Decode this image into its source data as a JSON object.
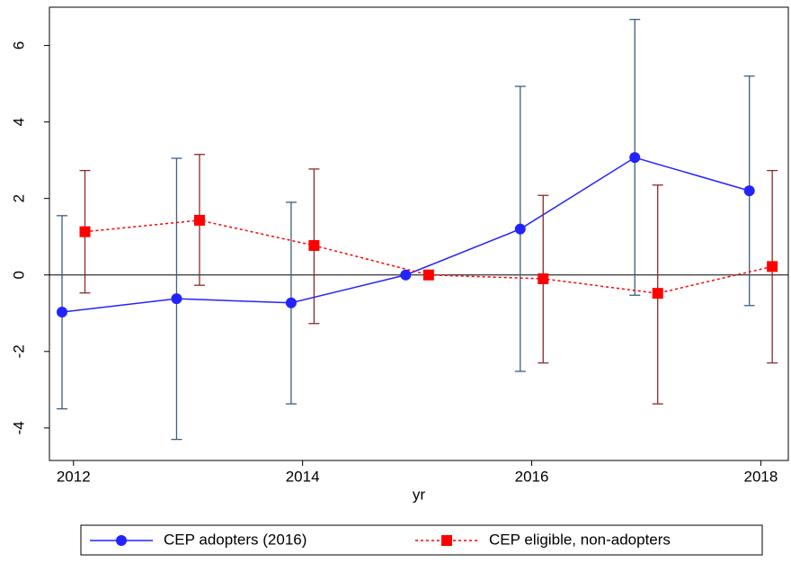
{
  "chart_data": {
    "type": "line",
    "x_label": "yr",
    "xlim": [
      2011.79,
      2018.24
    ],
    "xticks": [
      2012,
      2014,
      2016,
      2018
    ],
    "ylim": [
      -4.85,
      7.0
    ],
    "yticks": [
      -4,
      -2,
      0,
      2,
      4,
      6
    ],
    "reference_line": 0,
    "legend": "bottom",
    "series": [
      {
        "name": "CEP adopters (2016)",
        "color": "#2323ff",
        "ci_color": "#3f5f7f",
        "marker": "circle",
        "dash": "solid",
        "x": [
          2011.9,
          2012.9,
          2013.9,
          2014.9,
          2015.9,
          2016.9,
          2017.9
        ],
        "values": [
          -0.97,
          -0.62,
          -0.73,
          0,
          1.2,
          3.07,
          2.2
        ],
        "lower": [
          -3.5,
          -4.3,
          -3.37,
          null,
          -2.52,
          -0.53,
          -0.8
        ],
        "upper": [
          1.55,
          3.05,
          1.9,
          null,
          4.93,
          6.68,
          5.2
        ]
      },
      {
        "name": "CEP eligible, non-adopters",
        "color": "#ff0000",
        "ci_color": "#8b2a2a",
        "marker": "square",
        "dash": "dotted",
        "x": [
          2012.1,
          2013.1,
          2014.1,
          2015.1,
          2016.1,
          2017.1,
          2018.1
        ],
        "values": [
          1.13,
          1.43,
          0.77,
          0,
          -0.1,
          -0.48,
          0.22
        ],
        "lower": [
          -0.47,
          -0.27,
          -1.27,
          null,
          -2.3,
          -3.37,
          -2.3
        ],
        "upper": [
          2.73,
          3.15,
          2.77,
          null,
          2.08,
          2.35,
          2.73
        ]
      }
    ]
  }
}
